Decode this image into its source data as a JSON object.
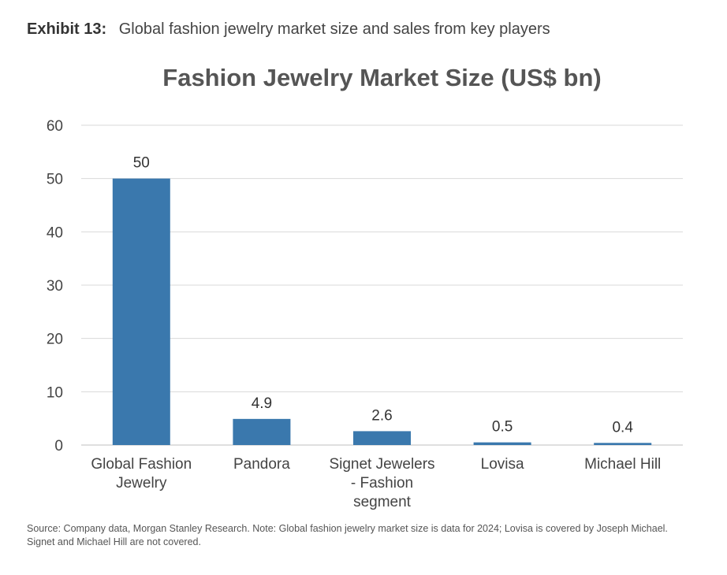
{
  "exhibit": {
    "label": "Exhibit 13:",
    "title": "Global fashion jewelry market size and sales from key players"
  },
  "chart_data": {
    "type": "bar",
    "title": "Fashion Jewelry Market Size (US$ bn)",
    "categories": [
      [
        "Global Fashion",
        "Jewelry"
      ],
      [
        "Pandora"
      ],
      [
        "Signet Jewelers",
        "- Fashion",
        "segment"
      ],
      [
        "Lovisa"
      ],
      [
        "Michael Hill"
      ]
    ],
    "values": [
      50,
      4.9,
      2.6,
      0.5,
      0.4
    ],
    "data_labels": [
      "50",
      "4.9",
      "2.6",
      "0.5",
      "0.4"
    ],
    "ylim": [
      0,
      60
    ],
    "yticks": [
      0,
      10,
      20,
      30,
      40,
      50,
      60
    ],
    "xlabel": "",
    "ylabel": "",
    "grid": true,
    "bar_color": "#3a78ad",
    "grid_color": "#d9d9d9"
  },
  "source": "Source: Company data, Morgan Stanley Research. Note: Global fashion jewelry market size is data for 2024; Lovisa is covered by Joseph Michael. Signet and Michael Hill are not covered."
}
